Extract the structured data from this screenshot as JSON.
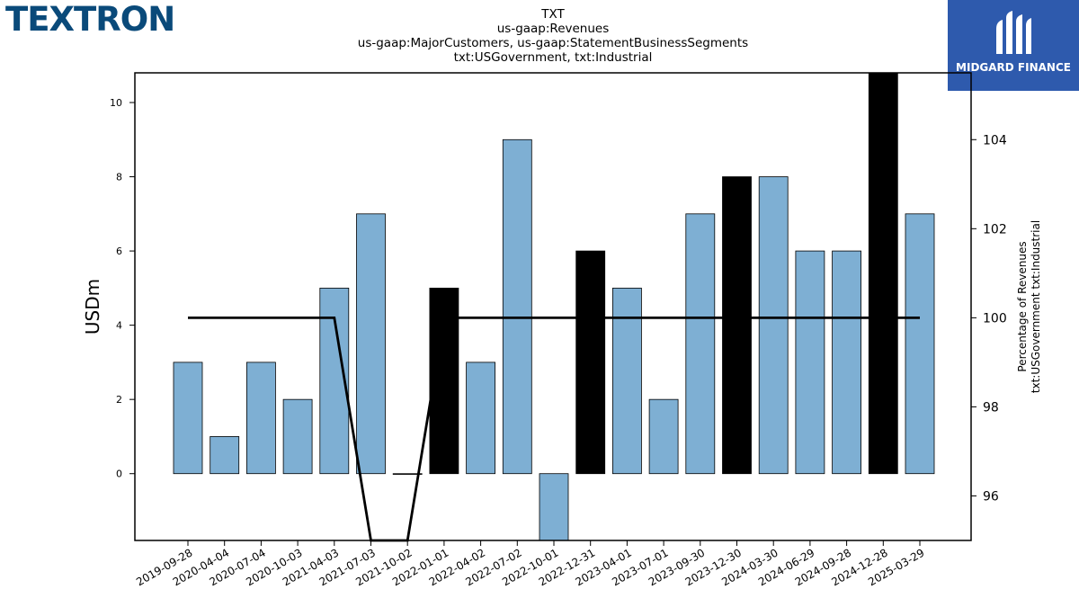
{
  "header": {
    "left_logo_text": "TEXTRON",
    "right_logo_text": "MIDGARD FINANCE",
    "right_logo_icon": "midgard-logo-icon",
    "right_logo_bg": "#2e5aad"
  },
  "chart_data": {
    "type": "bar",
    "title_lines": [
      "TXT",
      "us-gaap:Revenues",
      "us-gaap:MajorCustomers, us-gaap:StatementBusinessSegments",
      "txt:USGovernment, txt:Industrial"
    ],
    "ylabel": "USDm",
    "y2label_lines": [
      "Percentage of Revenues",
      "txt:USGovernment txt:Industrial"
    ],
    "categories": [
      "2019-09-28",
      "2020-04-04",
      "2020-07-04",
      "2020-10-03",
      "2021-04-03",
      "2021-07-03",
      "2021-10-02",
      "2022-01-01",
      "2022-04-02",
      "2022-07-02",
      "2022-10-01",
      "2022-12-31",
      "2023-04-01",
      "2023-07-01",
      "2023-09-30",
      "2023-12-30",
      "2024-03-30",
      "2024-06-29",
      "2024-09-28",
      "2024-12-28",
      "2025-03-29"
    ],
    "values": [
      3,
      1,
      3,
      2,
      5,
      7,
      0,
      5,
      3,
      9,
      -3,
      6,
      5,
      2,
      7,
      8,
      8,
      6,
      6,
      11,
      7
    ],
    "bar_colors": [
      "#7eafd3",
      "#7eafd3",
      "#7eafd3",
      "#7eafd3",
      "#7eafd3",
      "#7eafd3",
      "#7eafd3",
      "#000000",
      "#7eafd3",
      "#7eafd3",
      "#7eafd3",
      "#000000",
      "#7eafd3",
      "#7eafd3",
      "#7eafd3",
      "#000000",
      "#7eafd3",
      "#7eafd3",
      "#7eafd3",
      "#000000",
      "#7eafd3"
    ],
    "ylim": [
      -1.8,
      10.8
    ],
    "yticks": [
      0,
      2,
      4,
      6,
      8,
      10
    ],
    "series2": {
      "values": [
        100,
        100,
        100,
        100,
        100,
        0,
        0,
        100,
        100,
        100,
        100,
        100,
        100,
        100,
        100,
        100,
        100,
        100,
        100,
        100,
        100
      ],
      "color": "#000000"
    },
    "y2lim": [
      95,
      105.5
    ],
    "y2ticks": [
      96,
      98,
      100,
      102,
      104
    ],
    "grid": false
  }
}
